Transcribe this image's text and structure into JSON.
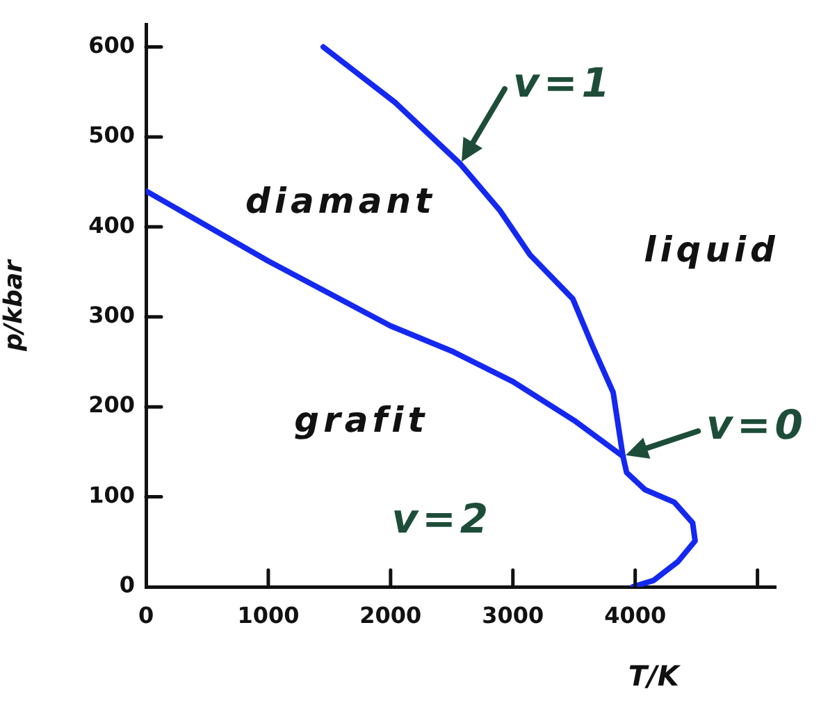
{
  "chart_data": {
    "type": "line",
    "xlabel": "T/K",
    "ylabel": "p/kbar",
    "xlim": [
      0,
      5150
    ],
    "ylim": [
      0,
      625
    ],
    "xticks": [
      0,
      1000,
      2000,
      3000,
      4000,
      {
        "value": 5000,
        "label": null
      }
    ],
    "yticks": [
      0,
      100,
      200,
      300,
      400,
      500,
      600
    ],
    "grid": false,
    "legend": false,
    "marker": "none",
    "line_style": "solid",
    "series": [
      {
        "color": "#1428f0",
        "x": [
          0,
          1000,
          2000,
          2500,
          3000,
          3500,
          3900
        ],
        "values": [
          440,
          362,
          290,
          262,
          228,
          185,
          145
        ]
      },
      {
        "color": "#1428f0",
        "x": [
          1450,
          2040,
          2570,
          2890,
          3140,
          3490,
          3650,
          3820,
          3900,
          3930,
          4080,
          4320,
          4470,
          4490,
          4350,
          4150,
          3980
        ],
        "values": [
          600,
          538,
          470,
          419,
          369,
          320,
          268,
          216,
          145,
          127,
          108,
          94,
          71,
          51,
          28,
          7,
          0
        ]
      }
    ],
    "annotations": [
      "diamant",
      "liquid",
      "grafit",
      "v=2",
      {
        "text": "v=1",
        "x": 2570,
        "y": 470
      },
      {
        "text": "v=0",
        "x": 3900,
        "y": 145
      }
    ]
  }
}
